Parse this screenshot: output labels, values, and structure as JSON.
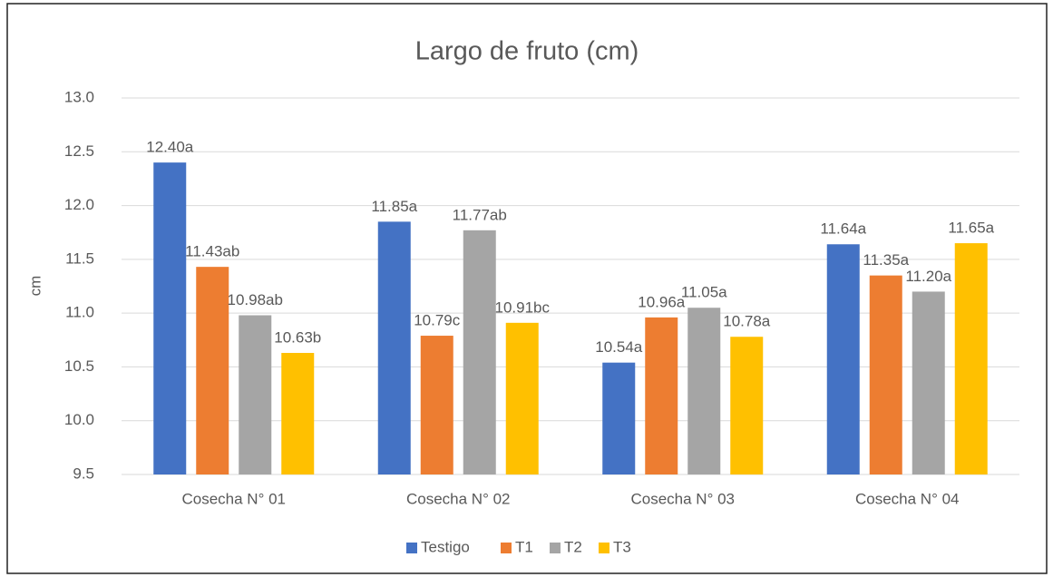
{
  "chart_data": {
    "type": "bar",
    "title": "Largo de fruto (cm)",
    "y_label": "cm",
    "categories": [
      "Cosecha N° 01",
      "Cosecha N° 02",
      "Cosecha N° 03",
      "Cosecha N° 04"
    ],
    "series": [
      {
        "name": "Testigo",
        "color": "#4472c4",
        "values": [
          12.4,
          11.85,
          10.54,
          11.64
        ],
        "value_labels": [
          "12.40a",
          "11.85a",
          "10.54a",
          "11.64a"
        ]
      },
      {
        "name": "T1",
        "color": "#ed7d31",
        "values": [
          11.43,
          10.79,
          10.96,
          11.35
        ],
        "value_labels": [
          "11.43ab",
          "10.79c",
          "10.96a",
          "11.35a"
        ]
      },
      {
        "name": "T2",
        "color": "#a5a5a5",
        "values": [
          10.98,
          11.77,
          11.05,
          11.2
        ],
        "value_labels": [
          "10.98ab",
          "11.77ab",
          "11.05a",
          "11.20a"
        ]
      },
      {
        "name": "T3",
        "color": "#ffc000",
        "values": [
          10.63,
          10.91,
          10.78,
          11.65
        ],
        "value_labels": [
          "10.63b",
          "10.91bc",
          "10.78a",
          "11.65a"
        ]
      }
    ],
    "ylim": [
      9.5,
      13
    ],
    "yticks": [
      9.5,
      {
        "value": 10,
        "label": "10.0"
      },
      10.5,
      {
        "value": 11,
        "label": "11.0"
      },
      11.5,
      {
        "value": 12,
        "label": "12.0"
      },
      12.5,
      {
        "value": 13,
        "label": "13.0"
      }
    ],
    "grid": true,
    "legend": "bottom"
  }
}
